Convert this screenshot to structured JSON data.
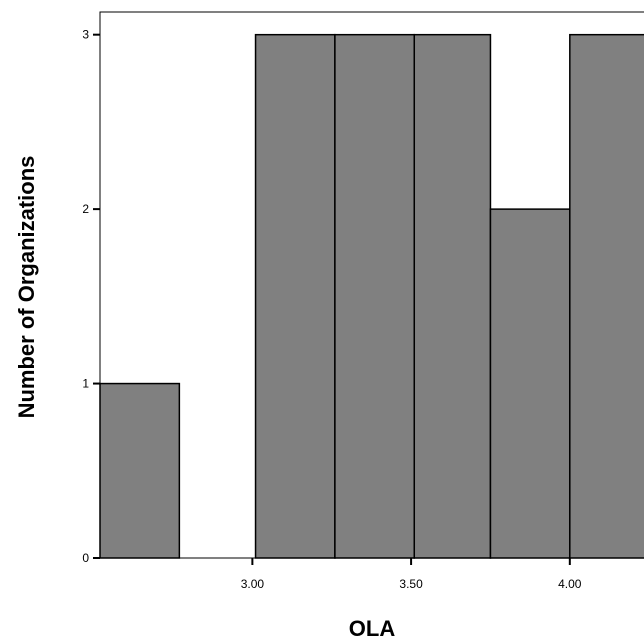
{
  "chart_data": {
    "type": "bar",
    "subtype": "histogram",
    "xlabel": "OLA",
    "ylabel": "Number of Organizations",
    "bins": [
      {
        "x0": 2.52,
        "x1": 2.77,
        "count": 1
      },
      {
        "x0": 2.77,
        "x1": 3.01,
        "count": 0
      },
      {
        "x0": 3.01,
        "x1": 3.26,
        "count": 3
      },
      {
        "x0": 3.26,
        "x1": 3.51,
        "count": 3
      },
      {
        "x0": 3.51,
        "x1": 3.75,
        "count": 3
      },
      {
        "x0": 3.75,
        "x1": 4.0,
        "count": 2
      },
      {
        "x0": 4.0,
        "x1": 4.24,
        "count": 3
      }
    ],
    "xticks": [
      {
        "value": 3.0,
        "label": "3.00"
      },
      {
        "value": 3.5,
        "label": "3.50"
      },
      {
        "value": 4.0,
        "label": "4.00"
      }
    ],
    "yticks": [
      {
        "value": 0,
        "label": "0"
      },
      {
        "value": 1,
        "label": "1"
      },
      {
        "value": 2,
        "label": "2"
      },
      {
        "value": 3,
        "label": "3"
      }
    ],
    "xlim": [
      2.52,
      4.24
    ],
    "ylim": [
      0,
      3.13
    ],
    "bar_color": "#808080",
    "edge_color": "#000000",
    "grid": false
  }
}
